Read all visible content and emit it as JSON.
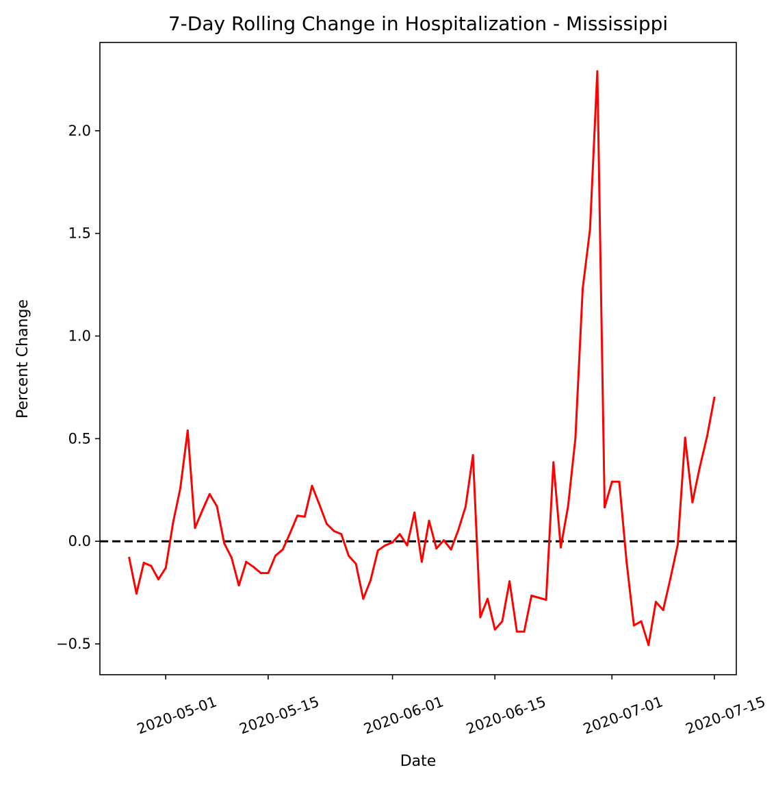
{
  "chart_data": {
    "type": "line",
    "title": "7-Day Rolling Change in Hospitalization - Mississippi",
    "xlabel": "Date",
    "ylabel": "Percent Change",
    "x_axis_type": "date",
    "xlim": [
      "2020-04-22",
      "2020-07-18"
    ],
    "ylim": [
      -0.65,
      2.43
    ],
    "x_ticks": [
      "2020-05-01",
      "2020-05-15",
      "2020-06-01",
      "2020-06-15",
      "2020-07-01",
      "2020-07-15"
    ],
    "y_ticks": [
      -0.5,
      0.0,
      0.5,
      1.0,
      1.5,
      2.0
    ],
    "y_tick_labels": [
      "−0.5",
      "0.0",
      "0.5",
      "1.0",
      "1.5",
      "2.0"
    ],
    "grid": false,
    "reference_line": {
      "y": 0.0,
      "style": "dashed",
      "color": "#000000"
    },
    "series": [
      {
        "color": "#ff0000",
        "x": [
          "2020-04-26",
          "2020-04-27",
          "2020-04-28",
          "2020-04-29",
          "2020-04-30",
          "2020-05-01",
          "2020-05-02",
          "2020-05-03",
          "2020-05-04",
          "2020-05-05",
          "2020-05-06",
          "2020-05-07",
          "2020-05-08",
          "2020-05-09",
          "2020-05-10",
          "2020-05-11",
          "2020-05-12",
          "2020-05-13",
          "2020-05-14",
          "2020-05-15",
          "2020-05-16",
          "2020-05-17",
          "2020-05-18",
          "2020-05-19",
          "2020-05-20",
          "2020-05-21",
          "2020-05-22",
          "2020-05-23",
          "2020-05-24",
          "2020-05-25",
          "2020-05-26",
          "2020-05-27",
          "2020-05-28",
          "2020-05-29",
          "2020-05-30",
          "2020-05-31",
          "2020-06-01",
          "2020-06-02",
          "2020-06-03",
          "2020-06-04",
          "2020-06-05",
          "2020-06-06",
          "2020-06-07",
          "2020-06-08",
          "2020-06-09",
          "2020-06-10",
          "2020-06-11",
          "2020-06-12",
          "2020-06-13",
          "2020-06-14",
          "2020-06-15",
          "2020-06-16",
          "2020-06-17",
          "2020-06-18",
          "2020-06-19",
          "2020-06-20",
          "2020-06-21",
          "2020-06-22",
          "2020-06-23",
          "2020-06-24",
          "2020-06-25",
          "2020-06-26",
          "2020-06-27",
          "2020-06-28",
          "2020-06-29",
          "2020-06-30",
          "2020-07-01",
          "2020-07-02",
          "2020-07-03",
          "2020-07-04",
          "2020-07-05",
          "2020-07-06",
          "2020-07-07",
          "2020-07-08",
          "2020-07-09",
          "2020-07-10",
          "2020-07-11",
          "2020-07-12",
          "2020-07-13",
          "2020-07-14",
          "2020-07-15"
        ],
        "values": [
          -0.08,
          -0.255,
          -0.105,
          -0.12,
          -0.185,
          -0.13,
          0.09,
          0.26,
          0.54,
          0.065,
          0.15,
          0.23,
          0.17,
          -0.01,
          -0.08,
          -0.215,
          -0.1,
          -0.125,
          -0.155,
          -0.155,
          -0.07,
          -0.04,
          0.04,
          0.125,
          0.12,
          0.27,
          0.18,
          0.085,
          0.05,
          0.035,
          -0.07,
          -0.11,
          -0.28,
          -0.19,
          -0.045,
          -0.02,
          -0.005,
          0.035,
          -0.02,
          0.14,
          -0.1,
          0.1,
          -0.035,
          0.005,
          -0.04,
          0.055,
          0.17,
          0.42,
          -0.37,
          -0.28,
          -0.43,
          -0.39,
          -0.195,
          -0.44,
          -0.44,
          -0.265,
          -0.275,
          -0.285,
          0.385,
          -0.03,
          0.17,
          0.5,
          1.23,
          1.52,
          2.29,
          0.165,
          0.29,
          0.29,
          -0.1,
          -0.41,
          -0.39,
          -0.505,
          -0.295,
          -0.335,
          -0.18,
          -0.015,
          0.505,
          0.19,
          0.36,
          0.51,
          0.7
        ]
      }
    ]
  }
}
